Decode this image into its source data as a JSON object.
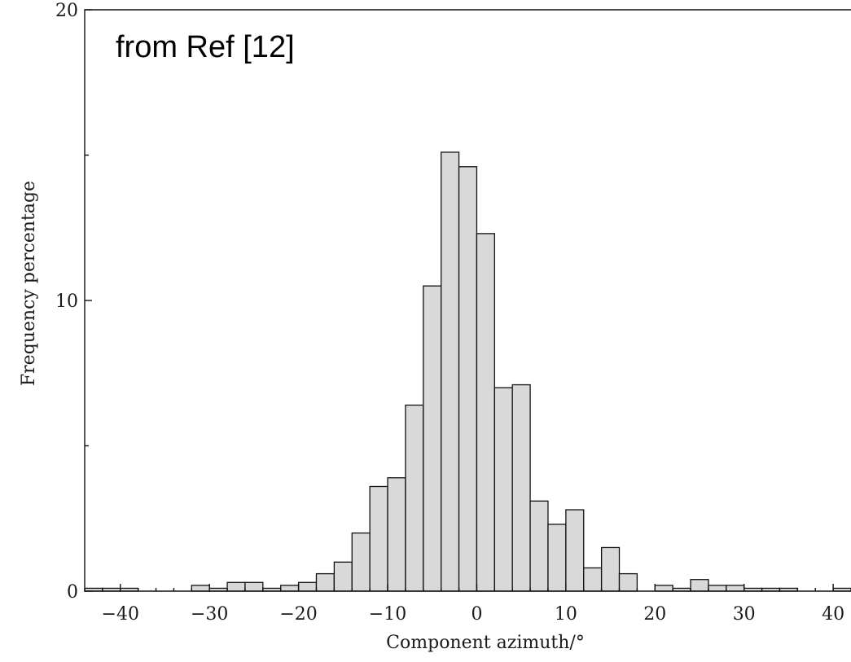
{
  "chart_data": {
    "type": "bar",
    "title": "",
    "annotation": "from Ref [12]",
    "xlabel": "Component azimuth/°",
    "ylabel": "Frequency percentage",
    "xlim": [
      -44,
      42
    ],
    "ylim": [
      0,
      20
    ],
    "xticks": [
      -40,
      -30,
      -20,
      -10,
      0,
      10,
      20,
      30,
      40
    ],
    "xtick_labels": [
      "−40",
      "−30",
      "−20",
      "−10",
      "0",
      "10",
      "20",
      "30",
      "40"
    ],
    "yticks": [
      0,
      10,
      20
    ],
    "ytick_labels": [
      "0",
      "10",
      "20"
    ],
    "grid": false,
    "bin_width": 2,
    "bin_starts": [
      -44,
      -42,
      -40,
      -32,
      -30,
      -28,
      -26,
      -24,
      -22,
      -20,
      -18,
      -16,
      -14,
      -12,
      -10,
      -8,
      -6,
      -4,
      -2,
      0,
      2,
      4,
      6,
      8,
      10,
      12,
      14,
      16,
      20,
      22,
      24,
      26,
      28,
      30,
      32,
      34,
      40
    ],
    "values": [
      0.1,
      0.1,
      0.1,
      0.2,
      0.1,
      0.3,
      0.3,
      0.1,
      0.2,
      0.3,
      0.6,
      1.0,
      2.0,
      3.6,
      3.9,
      6.4,
      10.5,
      15.1,
      14.6,
      12.3,
      7.0,
      7.1,
      3.1,
      2.3,
      2.8,
      0.8,
      1.5,
      0.6,
      0.2,
      0.1,
      0.4,
      0.2,
      0.2,
      0.1,
      0.1,
      0.1,
      0.1
    ]
  }
}
